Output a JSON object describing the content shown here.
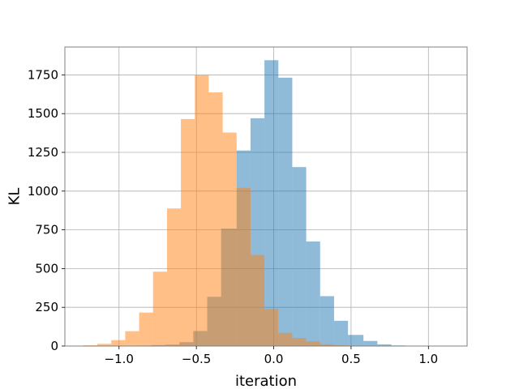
{
  "chart_data": {
    "type": "bar",
    "subtype": "overlapping-histogram",
    "title": "",
    "xlabel": "iteration",
    "ylabel": "KL",
    "xlim": [
      -1.35,
      1.25
    ],
    "ylim": [
      0,
      1930
    ],
    "grid": true,
    "xticks": [
      -1.0,
      -0.5,
      0.0,
      0.5,
      1.0
    ],
    "xtick_labels": [
      "−1.0",
      "−0.5",
      "0.0",
      "0.5",
      "1.0"
    ],
    "yticks": [
      0,
      250,
      500,
      750,
      1000,
      1250,
      1500,
      1750
    ],
    "ytick_labels": [
      "0",
      "250",
      "500",
      "750",
      "1000",
      "1250",
      "1500",
      "1750"
    ],
    "series": [
      {
        "color": "#1f77b4",
        "alpha": 0.5,
        "bins": [
          {
            "x0": -0.88,
            "x1": -0.79,
            "count": 3
          },
          {
            "x0": -0.79,
            "x1": -0.7,
            "count": 6
          },
          {
            "x0": -0.7,
            "x1": -0.61,
            "count": 9
          },
          {
            "x0": -0.61,
            "x1": -0.52,
            "count": 25
          },
          {
            "x0": -0.52,
            "x1": -0.43,
            "count": 97
          },
          {
            "x0": -0.43,
            "x1": -0.34,
            "count": 318
          },
          {
            "x0": -0.34,
            "x1": -0.24,
            "count": 758
          },
          {
            "x0": -0.24,
            "x1": -0.15,
            "count": 1262
          },
          {
            "x0": -0.15,
            "x1": -0.06,
            "count": 1470
          },
          {
            "x0": -0.06,
            "x1": 0.03,
            "count": 1845
          },
          {
            "x0": 0.03,
            "x1": 0.12,
            "count": 1732
          },
          {
            "x0": 0.12,
            "x1": 0.21,
            "count": 1155
          },
          {
            "x0": 0.21,
            "x1": 0.3,
            "count": 675
          },
          {
            "x0": 0.3,
            "x1": 0.39,
            "count": 322
          },
          {
            "x0": 0.39,
            "x1": 0.48,
            "count": 163
          },
          {
            "x0": 0.48,
            "x1": 0.58,
            "count": 72
          },
          {
            "x0": 0.58,
            "x1": 0.67,
            "count": 33
          },
          {
            "x0": 0.67,
            "x1": 0.76,
            "count": 11
          },
          {
            "x0": 0.76,
            "x1": 0.85,
            "count": 4
          },
          {
            "x0": 0.85,
            "x1": 0.94,
            "count": 2
          },
          {
            "x0": 0.94,
            "x1": 1.03,
            "count": 1
          },
          {
            "x0": 1.03,
            "x1": 1.12,
            "count": 1
          }
        ]
      },
      {
        "color": "#ff7f0e",
        "alpha": 0.5,
        "bins": [
          {
            "x0": -1.23,
            "x1": -1.14,
            "count": 5
          },
          {
            "x0": -1.14,
            "x1": -1.05,
            "count": 14
          },
          {
            "x0": -1.05,
            "x1": -0.96,
            "count": 38
          },
          {
            "x0": -0.96,
            "x1": -0.87,
            "count": 96
          },
          {
            "x0": -0.87,
            "x1": -0.78,
            "count": 216
          },
          {
            "x0": -0.78,
            "x1": -0.69,
            "count": 480
          },
          {
            "x0": -0.69,
            "x1": -0.6,
            "count": 888
          },
          {
            "x0": -0.6,
            "x1": -0.51,
            "count": 1465
          },
          {
            "x0": -0.51,
            "x1": -0.42,
            "count": 1748
          },
          {
            "x0": -0.42,
            "x1": -0.33,
            "count": 1637
          },
          {
            "x0": -0.33,
            "x1": -0.24,
            "count": 1378
          },
          {
            "x0": -0.24,
            "x1": -0.15,
            "count": 1021
          },
          {
            "x0": -0.15,
            "x1": -0.06,
            "count": 588
          },
          {
            "x0": -0.06,
            "x1": 0.03,
            "count": 240
          },
          {
            "x0": 0.03,
            "x1": 0.12,
            "count": 85
          },
          {
            "x0": 0.12,
            "x1": 0.21,
            "count": 52
          },
          {
            "x0": 0.21,
            "x1": 0.3,
            "count": 30
          },
          {
            "x0": 0.3,
            "x1": 0.39,
            "count": 12
          },
          {
            "x0": 0.39,
            "x1": 0.48,
            "count": 5
          }
        ]
      }
    ]
  }
}
